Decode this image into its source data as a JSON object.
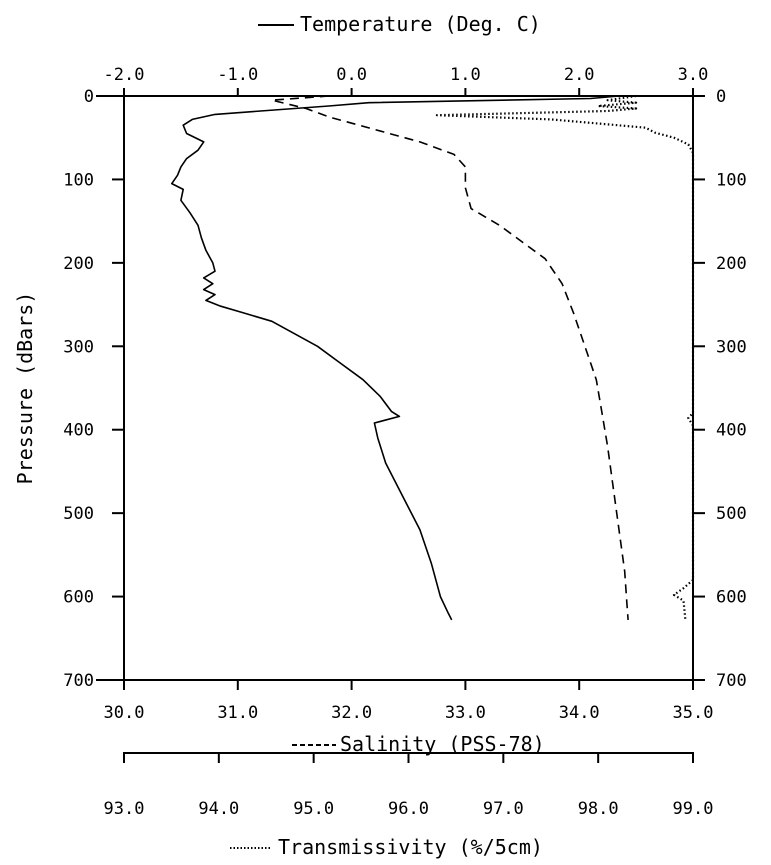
{
  "chart_data": {
    "type": "line",
    "y_axis": {
      "label": "Pressure (dBars)",
      "ticks": [
        0,
        100,
        200,
        300,
        400,
        500,
        600,
        700
      ],
      "range": [
        0,
        700
      ],
      "inverted": true
    },
    "temperature_axis": {
      "title": "Temperature (Deg. C)",
      "position": "top",
      "range": [
        -2.0,
        3.0
      ],
      "ticks": [
        "-2.0",
        "-1.0",
        "0.0",
        "1.0",
        "2.0",
        "3.0"
      ]
    },
    "salinity_axis": {
      "title": "Salinity (PSS-78)",
      "position": "bottom",
      "range": [
        30.0,
        35.0
      ],
      "ticks": [
        "30.0",
        "31.0",
        "32.0",
        "33.0",
        "34.0",
        "35.0"
      ]
    },
    "transmissivity_axis": {
      "title": "Transmissivity (%/5cm)",
      "position": "bottom-offset",
      "range": [
        93.0,
        99.0
      ],
      "ticks": [
        "93.0",
        "94.0",
        "95.0",
        "96.0",
        "97.0",
        "98.0",
        "99.0"
      ]
    },
    "series": [
      {
        "name": "Temperature",
        "style": "solid",
        "axis": "temperature",
        "points": [
          [
            2.35,
            0
          ],
          [
            2.1,
            3
          ],
          [
            0.15,
            8
          ],
          [
            -0.2,
            12
          ],
          [
            -0.8,
            18
          ],
          [
            -1.2,
            22
          ],
          [
            -1.4,
            28
          ],
          [
            -1.48,
            35
          ],
          [
            -1.45,
            45
          ],
          [
            -1.3,
            55
          ],
          [
            -1.35,
            65
          ],
          [
            -1.45,
            75
          ],
          [
            -1.5,
            85
          ],
          [
            -1.53,
            95
          ],
          [
            -1.58,
            105
          ],
          [
            -1.48,
            112
          ],
          [
            -1.5,
            125
          ],
          [
            -1.42,
            140
          ],
          [
            -1.35,
            155
          ],
          [
            -1.32,
            170
          ],
          [
            -1.28,
            185
          ],
          [
            -1.22,
            200
          ],
          [
            -1.2,
            210
          ],
          [
            -1.3,
            218
          ],
          [
            -1.22,
            225
          ],
          [
            -1.3,
            232
          ],
          [
            -1.2,
            238
          ],
          [
            -1.28,
            245
          ],
          [
            -1.15,
            252
          ],
          [
            -0.95,
            260
          ],
          [
            -0.7,
            270
          ],
          [
            -0.5,
            285
          ],
          [
            -0.3,
            300
          ],
          [
            -0.1,
            320
          ],
          [
            0.1,
            340
          ],
          [
            0.25,
            360
          ],
          [
            0.35,
            378
          ],
          [
            0.42,
            384
          ],
          [
            0.2,
            392
          ],
          [
            0.23,
            410
          ],
          [
            0.3,
            440
          ],
          [
            0.45,
            480
          ],
          [
            0.6,
            520
          ],
          [
            0.7,
            560
          ],
          [
            0.78,
            600
          ],
          [
            0.85,
            620
          ],
          [
            0.88,
            628
          ]
        ]
      },
      {
        "name": "Salinity",
        "style": "dashed",
        "axis": "salinity",
        "points": [
          [
            31.8,
            0
          ],
          [
            31.3,
            5
          ],
          [
            31.6,
            15
          ],
          [
            31.8,
            25
          ],
          [
            32.2,
            40
          ],
          [
            32.6,
            55
          ],
          [
            32.9,
            70
          ],
          [
            33.0,
            85
          ],
          [
            33.0,
            110
          ],
          [
            33.05,
            135
          ],
          [
            33.3,
            155
          ],
          [
            33.5,
            175
          ],
          [
            33.7,
            195
          ],
          [
            33.85,
            225
          ],
          [
            33.95,
            260
          ],
          [
            34.05,
            300
          ],
          [
            34.15,
            340
          ],
          [
            34.2,
            380
          ],
          [
            34.25,
            420
          ],
          [
            34.3,
            470
          ],
          [
            34.35,
            520
          ],
          [
            34.4,
            570
          ],
          [
            34.42,
            610
          ],
          [
            34.43,
            628
          ]
        ]
      },
      {
        "name": "Transmissivity",
        "style": "dotted",
        "axis": "transmissivity",
        "points": [
          [
            98.4,
            0
          ],
          [
            98.1,
            5
          ],
          [
            98.4,
            8
          ],
          [
            98.0,
            12
          ],
          [
            98.4,
            15
          ],
          [
            98.1,
            18
          ],
          [
            96.3,
            23
          ],
          [
            97.5,
            28
          ],
          [
            98.0,
            33
          ],
          [
            98.5,
            38
          ],
          [
            98.6,
            44
          ],
          [
            98.8,
            50
          ],
          [
            98.95,
            58
          ],
          [
            99.0,
            68
          ],
          [
            99.0,
            200
          ],
          [
            99.0,
            300
          ],
          [
            99.0,
            380
          ],
          [
            98.95,
            386
          ],
          [
            99.0,
            395
          ],
          [
            99.0,
            500
          ],
          [
            99.0,
            580
          ],
          [
            98.9,
            590
          ],
          [
            98.8,
            598
          ],
          [
            98.9,
            605
          ],
          [
            98.92,
            628
          ]
        ]
      }
    ],
    "legend": "axis-titles"
  }
}
